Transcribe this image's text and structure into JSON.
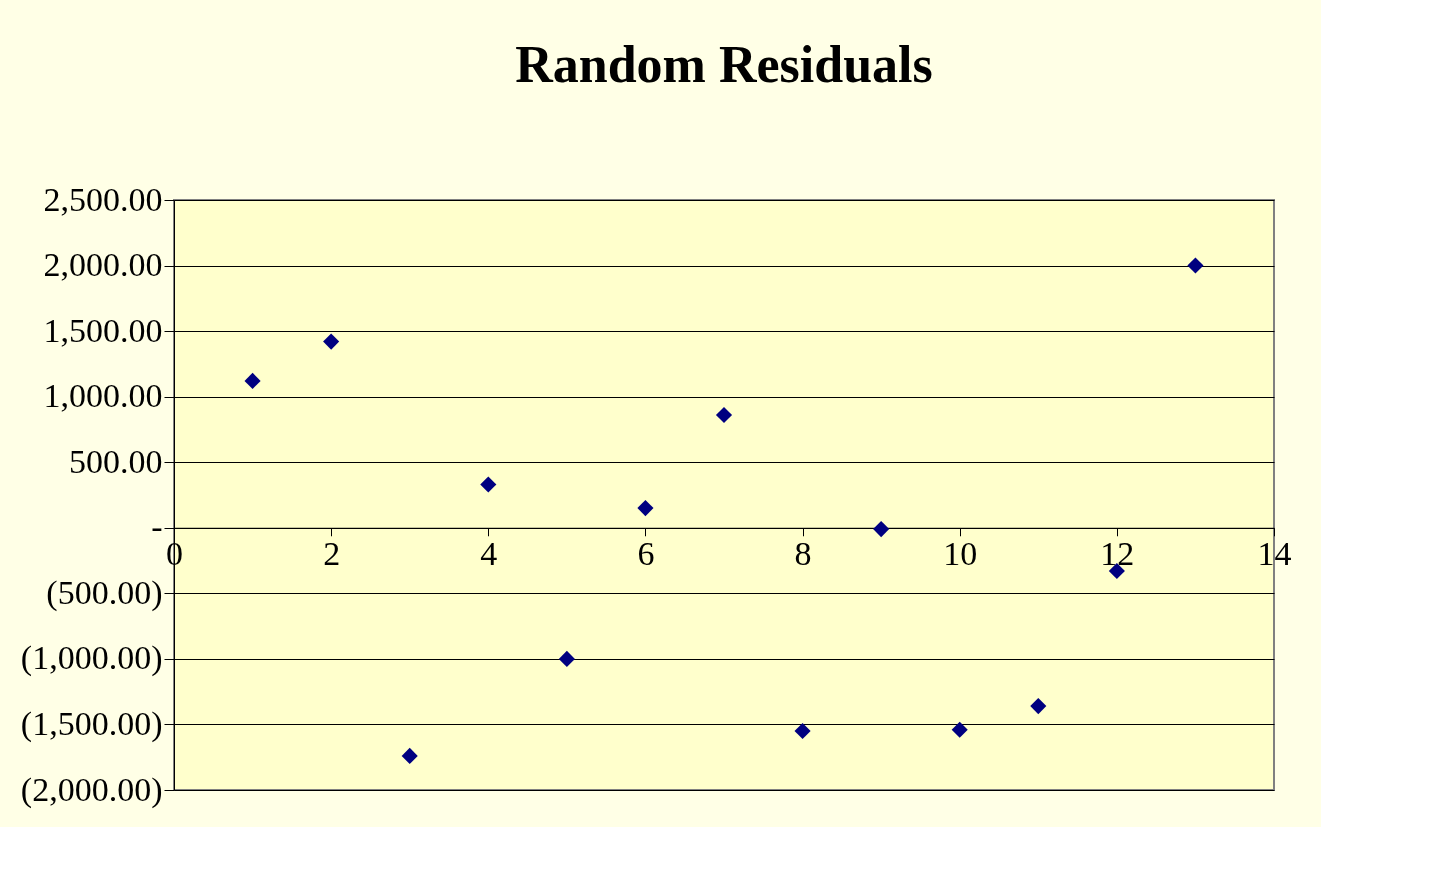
{
  "chart_data": {
    "type": "scatter",
    "title": "Random Residuals",
    "x": [
      1,
      2,
      3,
      4,
      5,
      6,
      7,
      8,
      9,
      10,
      11,
      12,
      13
    ],
    "series": [
      {
        "color": "#000080",
        "values": [
          1120,
          1420,
          -1740,
          330,
          -1000,
          150,
          860,
          -1550,
          -10,
          -1540,
          -1360,
          -330,
          2000
        ]
      }
    ],
    "xlim": [
      0,
      14
    ],
    "xticks": [
      0,
      2,
      4,
      6,
      8,
      10,
      12,
      14
    ],
    "ylim": [
      -2000,
      2500
    ],
    "yticks": [
      {
        "value": -2000,
        "label": "(2,000.00)"
      },
      {
        "value": -1500,
        "label": "(1,500.00)"
      },
      {
        "value": -1000,
        "label": "(1,000.00)"
      },
      {
        "value": -500,
        "label": "(500.00)"
      },
      {
        "value": 0,
        "label": "-"
      },
      {
        "value": 500,
        "label": "500.00"
      },
      {
        "value": 1000,
        "label": "1,000.00"
      },
      {
        "value": 1500,
        "label": "1,500.00"
      },
      {
        "value": 2000,
        "label": "2,000.00"
      },
      {
        "value": 2500,
        "label": "2,500.00"
      }
    ],
    "grid": "y",
    "marker": "diamond"
  }
}
